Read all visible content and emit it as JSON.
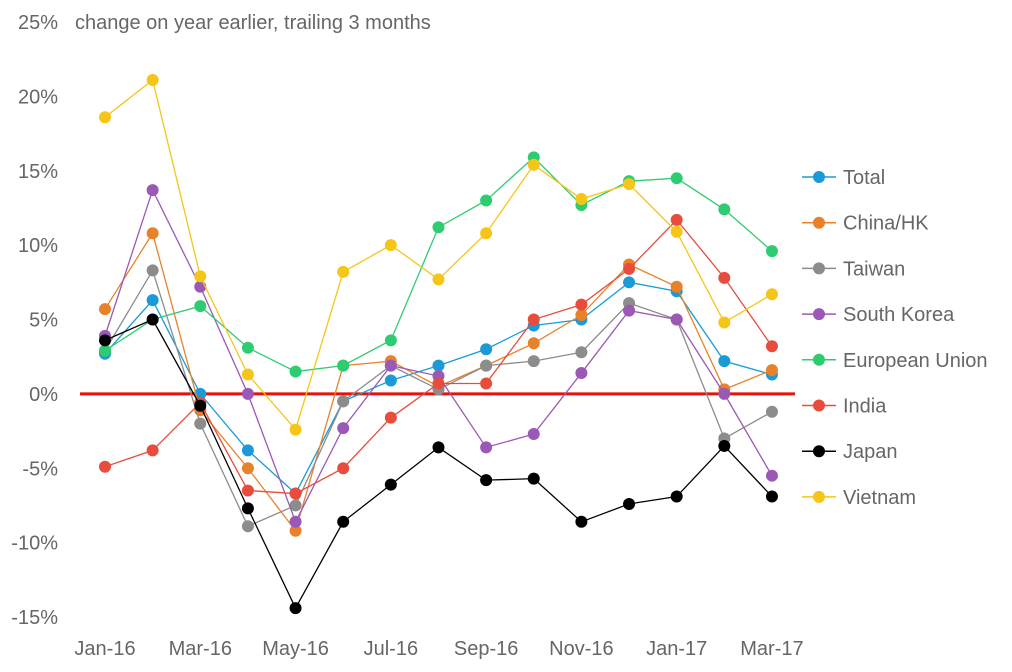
{
  "chart_data": {
    "type": "line",
    "title": "change on year earlier, trailing 3 months",
    "xlabel": "",
    "ylabel": "",
    "ylim": [
      -15,
      25
    ],
    "yticks": [
      -15,
      -10,
      -5,
      0,
      5,
      10,
      15,
      20,
      25
    ],
    "ytick_labels": [
      "-15%",
      "-10%",
      "-5%",
      "0%",
      "5%",
      "10%",
      "15%",
      "20%",
      "25%"
    ],
    "x": [
      "Jan-16",
      "Feb-16",
      "Mar-16",
      "Apr-16",
      "May-16",
      "Jun-16",
      "Jul-16",
      "Aug-16",
      "Sep-16",
      "Oct-16",
      "Nov-16",
      "Dec-16",
      "Jan-17",
      "Feb-17",
      "Mar-17"
    ],
    "xtick_labels": [
      "Jan-16",
      "Mar-16",
      "May-16",
      "Jul-16",
      "Sep-16",
      "Nov-16",
      "Jan-17",
      "Mar-17"
    ],
    "reference_line": {
      "value": 0,
      "color": "#e3120b"
    },
    "legend_position": "right",
    "grid": false,
    "series": [
      {
        "name": "Total",
        "color": "#1a9bd7",
        "values": [
          2.7,
          6.3,
          0.0,
          -3.8,
          -6.7,
          -0.5,
          0.9,
          1.9,
          3.0,
          4.6,
          5.0,
          7.5,
          6.9,
          2.2,
          1.3
        ]
      },
      {
        "name": "China/HK",
        "color": "#e8822a",
        "values": [
          5.7,
          10.8,
          -1.1,
          -5.0,
          -9.2,
          1.9,
          2.2,
          0.5,
          1.9,
          3.4,
          5.3,
          8.7,
          7.2,
          0.3,
          1.6
        ]
      },
      {
        "name": "Taiwan",
        "color": "#8c8c8c",
        "values": [
          2.9,
          8.3,
          -2.0,
          -8.9,
          -7.5,
          -0.5,
          1.9,
          0.3,
          1.9,
          2.2,
          2.8,
          6.1,
          5.0,
          -3.0,
          -1.2
        ]
      },
      {
        "name": "South Korea",
        "color": "#9b59b6",
        "values": [
          3.9,
          13.7,
          7.2,
          0.0,
          -8.6,
          -2.3,
          1.9,
          1.2,
          -3.6,
          -2.7,
          1.4,
          5.6,
          5.0,
          0.0,
          -5.5
        ]
      },
      {
        "name": "European Union",
        "color": "#2ecc71",
        "values": [
          2.9,
          5.0,
          5.9,
          3.1,
          1.5,
          1.9,
          3.6,
          11.2,
          13.0,
          15.9,
          12.7,
          14.3,
          14.5,
          12.4,
          9.6
        ]
      },
      {
        "name": "India",
        "color": "#e74c3c",
        "values": [
          -4.9,
          -3.8,
          -0.6,
          -6.5,
          -6.7,
          -5.0,
          -1.6,
          0.7,
          0.7,
          5.0,
          6.0,
          8.4,
          11.7,
          7.8,
          3.2
        ]
      },
      {
        "name": "Japan",
        "color": "#000000",
        "values": [
          3.6,
          5.0,
          -0.8,
          -7.7,
          -14.4,
          -8.6,
          -6.1,
          -3.6,
          -5.8,
          -5.7,
          -8.6,
          -7.4,
          -6.9,
          -3.5,
          -6.9
        ]
      },
      {
        "name": "Vietnam",
        "color": "#f5c518",
        "values": [
          18.6,
          21.1,
          7.9,
          1.3,
          -2.4,
          8.2,
          10.0,
          7.7,
          10.8,
          15.4,
          13.1,
          14.1,
          10.9,
          4.8,
          6.7
        ]
      }
    ]
  }
}
